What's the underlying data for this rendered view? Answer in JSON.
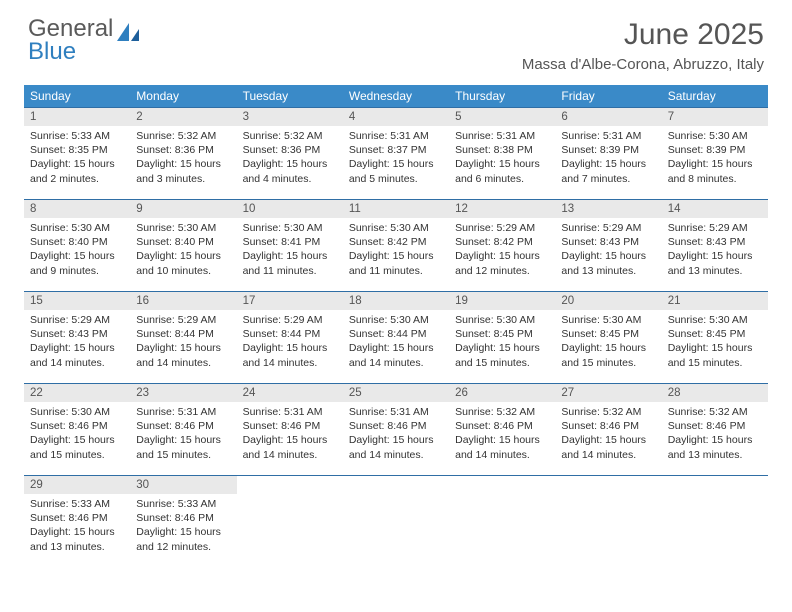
{
  "brand": {
    "name_part1": "General",
    "name_part2": "Blue",
    "text_color": "#5a5a5a",
    "accent_color": "#2f7fbf"
  },
  "header": {
    "title": "June 2025",
    "location": "Massa d'Albe-Corona, Abruzzo, Italy"
  },
  "styling": {
    "page_bg": "#ffffff",
    "header_row_bg": "#3a8ac8",
    "header_row_text": "#ffffff",
    "daynum_bg": "#e9e9e9",
    "daynum_text": "#555555",
    "cell_border": "#2f6ea5",
    "body_text": "#333333",
    "title_fontsize": 30,
    "subtitle_fontsize": 15,
    "dayhead_fontsize": 12,
    "daynum_fontsize": 11.5,
    "content_fontsize": 10.5
  },
  "weekdays": [
    "Sunday",
    "Monday",
    "Tuesday",
    "Wednesday",
    "Thursday",
    "Friday",
    "Saturday"
  ],
  "weeks": [
    [
      {
        "day": "1",
        "sunrise": "Sunrise: 5:33 AM",
        "sunset": "Sunset: 8:35 PM",
        "daylight": "Daylight: 15 hours and 2 minutes."
      },
      {
        "day": "2",
        "sunrise": "Sunrise: 5:32 AM",
        "sunset": "Sunset: 8:36 PM",
        "daylight": "Daylight: 15 hours and 3 minutes."
      },
      {
        "day": "3",
        "sunrise": "Sunrise: 5:32 AM",
        "sunset": "Sunset: 8:36 PM",
        "daylight": "Daylight: 15 hours and 4 minutes."
      },
      {
        "day": "4",
        "sunrise": "Sunrise: 5:31 AM",
        "sunset": "Sunset: 8:37 PM",
        "daylight": "Daylight: 15 hours and 5 minutes."
      },
      {
        "day": "5",
        "sunrise": "Sunrise: 5:31 AM",
        "sunset": "Sunset: 8:38 PM",
        "daylight": "Daylight: 15 hours and 6 minutes."
      },
      {
        "day": "6",
        "sunrise": "Sunrise: 5:31 AM",
        "sunset": "Sunset: 8:39 PM",
        "daylight": "Daylight: 15 hours and 7 minutes."
      },
      {
        "day": "7",
        "sunrise": "Sunrise: 5:30 AM",
        "sunset": "Sunset: 8:39 PM",
        "daylight": "Daylight: 15 hours and 8 minutes."
      }
    ],
    [
      {
        "day": "8",
        "sunrise": "Sunrise: 5:30 AM",
        "sunset": "Sunset: 8:40 PM",
        "daylight": "Daylight: 15 hours and 9 minutes."
      },
      {
        "day": "9",
        "sunrise": "Sunrise: 5:30 AM",
        "sunset": "Sunset: 8:40 PM",
        "daylight": "Daylight: 15 hours and 10 minutes."
      },
      {
        "day": "10",
        "sunrise": "Sunrise: 5:30 AM",
        "sunset": "Sunset: 8:41 PM",
        "daylight": "Daylight: 15 hours and 11 minutes."
      },
      {
        "day": "11",
        "sunrise": "Sunrise: 5:30 AM",
        "sunset": "Sunset: 8:42 PM",
        "daylight": "Daylight: 15 hours and 11 minutes."
      },
      {
        "day": "12",
        "sunrise": "Sunrise: 5:29 AM",
        "sunset": "Sunset: 8:42 PM",
        "daylight": "Daylight: 15 hours and 12 minutes."
      },
      {
        "day": "13",
        "sunrise": "Sunrise: 5:29 AM",
        "sunset": "Sunset: 8:43 PM",
        "daylight": "Daylight: 15 hours and 13 minutes."
      },
      {
        "day": "14",
        "sunrise": "Sunrise: 5:29 AM",
        "sunset": "Sunset: 8:43 PM",
        "daylight": "Daylight: 15 hours and 13 minutes."
      }
    ],
    [
      {
        "day": "15",
        "sunrise": "Sunrise: 5:29 AM",
        "sunset": "Sunset: 8:43 PM",
        "daylight": "Daylight: 15 hours and 14 minutes."
      },
      {
        "day": "16",
        "sunrise": "Sunrise: 5:29 AM",
        "sunset": "Sunset: 8:44 PM",
        "daylight": "Daylight: 15 hours and 14 minutes."
      },
      {
        "day": "17",
        "sunrise": "Sunrise: 5:29 AM",
        "sunset": "Sunset: 8:44 PM",
        "daylight": "Daylight: 15 hours and 14 minutes."
      },
      {
        "day": "18",
        "sunrise": "Sunrise: 5:30 AM",
        "sunset": "Sunset: 8:44 PM",
        "daylight": "Daylight: 15 hours and 14 minutes."
      },
      {
        "day": "19",
        "sunrise": "Sunrise: 5:30 AM",
        "sunset": "Sunset: 8:45 PM",
        "daylight": "Daylight: 15 hours and 15 minutes."
      },
      {
        "day": "20",
        "sunrise": "Sunrise: 5:30 AM",
        "sunset": "Sunset: 8:45 PM",
        "daylight": "Daylight: 15 hours and 15 minutes."
      },
      {
        "day": "21",
        "sunrise": "Sunrise: 5:30 AM",
        "sunset": "Sunset: 8:45 PM",
        "daylight": "Daylight: 15 hours and 15 minutes."
      }
    ],
    [
      {
        "day": "22",
        "sunrise": "Sunrise: 5:30 AM",
        "sunset": "Sunset: 8:46 PM",
        "daylight": "Daylight: 15 hours and 15 minutes."
      },
      {
        "day": "23",
        "sunrise": "Sunrise: 5:31 AM",
        "sunset": "Sunset: 8:46 PM",
        "daylight": "Daylight: 15 hours and 15 minutes."
      },
      {
        "day": "24",
        "sunrise": "Sunrise: 5:31 AM",
        "sunset": "Sunset: 8:46 PM",
        "daylight": "Daylight: 15 hours and 14 minutes."
      },
      {
        "day": "25",
        "sunrise": "Sunrise: 5:31 AM",
        "sunset": "Sunset: 8:46 PM",
        "daylight": "Daylight: 15 hours and 14 minutes."
      },
      {
        "day": "26",
        "sunrise": "Sunrise: 5:32 AM",
        "sunset": "Sunset: 8:46 PM",
        "daylight": "Daylight: 15 hours and 14 minutes."
      },
      {
        "day": "27",
        "sunrise": "Sunrise: 5:32 AM",
        "sunset": "Sunset: 8:46 PM",
        "daylight": "Daylight: 15 hours and 14 minutes."
      },
      {
        "day": "28",
        "sunrise": "Sunrise: 5:32 AM",
        "sunset": "Sunset: 8:46 PM",
        "daylight": "Daylight: 15 hours and 13 minutes."
      }
    ],
    [
      {
        "day": "29",
        "sunrise": "Sunrise: 5:33 AM",
        "sunset": "Sunset: 8:46 PM",
        "daylight": "Daylight: 15 hours and 13 minutes."
      },
      {
        "day": "30",
        "sunrise": "Sunrise: 5:33 AM",
        "sunset": "Sunset: 8:46 PM",
        "daylight": "Daylight: 15 hours and 12 minutes."
      },
      {
        "empty": true
      },
      {
        "empty": true
      },
      {
        "empty": true
      },
      {
        "empty": true
      },
      {
        "empty": true
      }
    ]
  ]
}
